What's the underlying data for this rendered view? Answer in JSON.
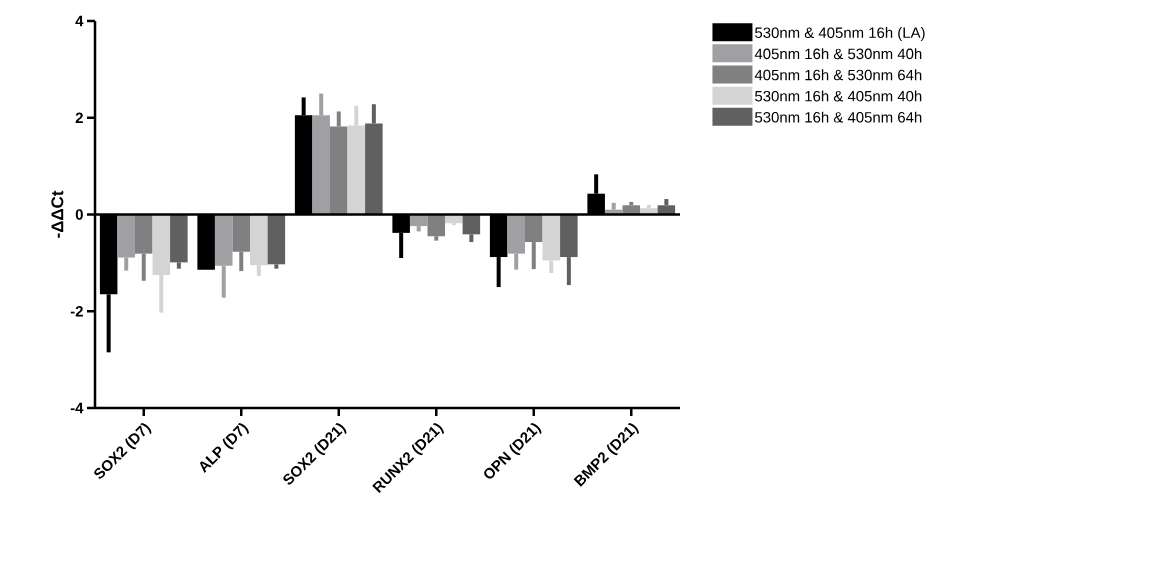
{
  "chart_data": {
    "type": "bar",
    "ylabel": "-ΔΔCt",
    "categories": [
      "SOX2 (D7)",
      "ALP (D7)",
      "SOX2 (D21)",
      "RUNX2 (D21)",
      "OPN (D21)",
      "BMP2 (D21)"
    ],
    "ylim": [
      -4,
      4
    ],
    "yticks": [
      -4,
      -2,
      0,
      2,
      4
    ],
    "legend": "top right",
    "ref_lines": [
      {
        "axis": "y",
        "value": 0
      }
    ],
    "series": [
      {
        "name": "530nm & 405nm 16h (LA)",
        "color": "#000000",
        "values": [
          -1.65,
          -1.14,
          2.05,
          -0.38,
          -0.88,
          0.43
        ],
        "errors": [
          [
            -2.85,
            -1.65
          ],
          null,
          [
            2.05,
            2.42
          ],
          [
            -0.9,
            -0.38
          ],
          [
            -1.5,
            -0.88
          ],
          [
            0.43,
            0.83
          ]
        ]
      },
      {
        "name": "405nm 16h & 530nm 40h",
        "color": "#a0a0a4",
        "values": [
          -0.89,
          -1.06,
          2.05,
          -0.24,
          -0.81,
          0.1
        ],
        "errors": [
          [
            -1.16,
            -0.89
          ],
          [
            -1.72,
            -1.06
          ],
          [
            2.05,
            2.5
          ],
          [
            -0.35,
            -0.24
          ],
          [
            -1.14,
            -0.81
          ],
          [
            0.1,
            0.24
          ]
        ]
      },
      {
        "name": "405nm 16h & 530nm 64h",
        "color": "#808080",
        "values": [
          -0.81,
          -0.77,
          1.82,
          -0.45,
          -0.57,
          0.19
        ],
        "errors": [
          [
            -1.37,
            -0.81
          ],
          [
            -1.17,
            -0.77
          ],
          [
            1.82,
            2.13
          ],
          [
            -0.54,
            -0.45
          ],
          [
            -1.13,
            -0.57
          ],
          [
            0.19,
            0.26
          ]
        ]
      },
      {
        "name": "530nm 16h & 405nm 40h",
        "color": "#d4d4d4",
        "values": [
          -1.25,
          -1.05,
          1.84,
          -0.18,
          -0.95,
          0.13
        ],
        "errors": [
          [
            -2.03,
            -1.25
          ],
          [
            -1.27,
            -1.05
          ],
          [
            1.84,
            2.25
          ],
          [
            -0.22,
            -0.18
          ],
          [
            -1.21,
            -0.95
          ],
          [
            0.13,
            0.2
          ]
        ]
      },
      {
        "name": "530nm 16h & 405nm 64h",
        "color": "#606060",
        "values": [
          -0.99,
          -1.03,
          1.88,
          -0.41,
          -0.88,
          0.19
        ],
        "errors": [
          [
            -1.12,
            -0.99
          ],
          [
            -1.12,
            -1.03
          ],
          [
            1.88,
            2.28
          ],
          [
            -0.57,
            -0.41
          ],
          [
            -1.46,
            -0.88
          ],
          [
            0.19,
            0.32
          ]
        ]
      }
    ]
  }
}
